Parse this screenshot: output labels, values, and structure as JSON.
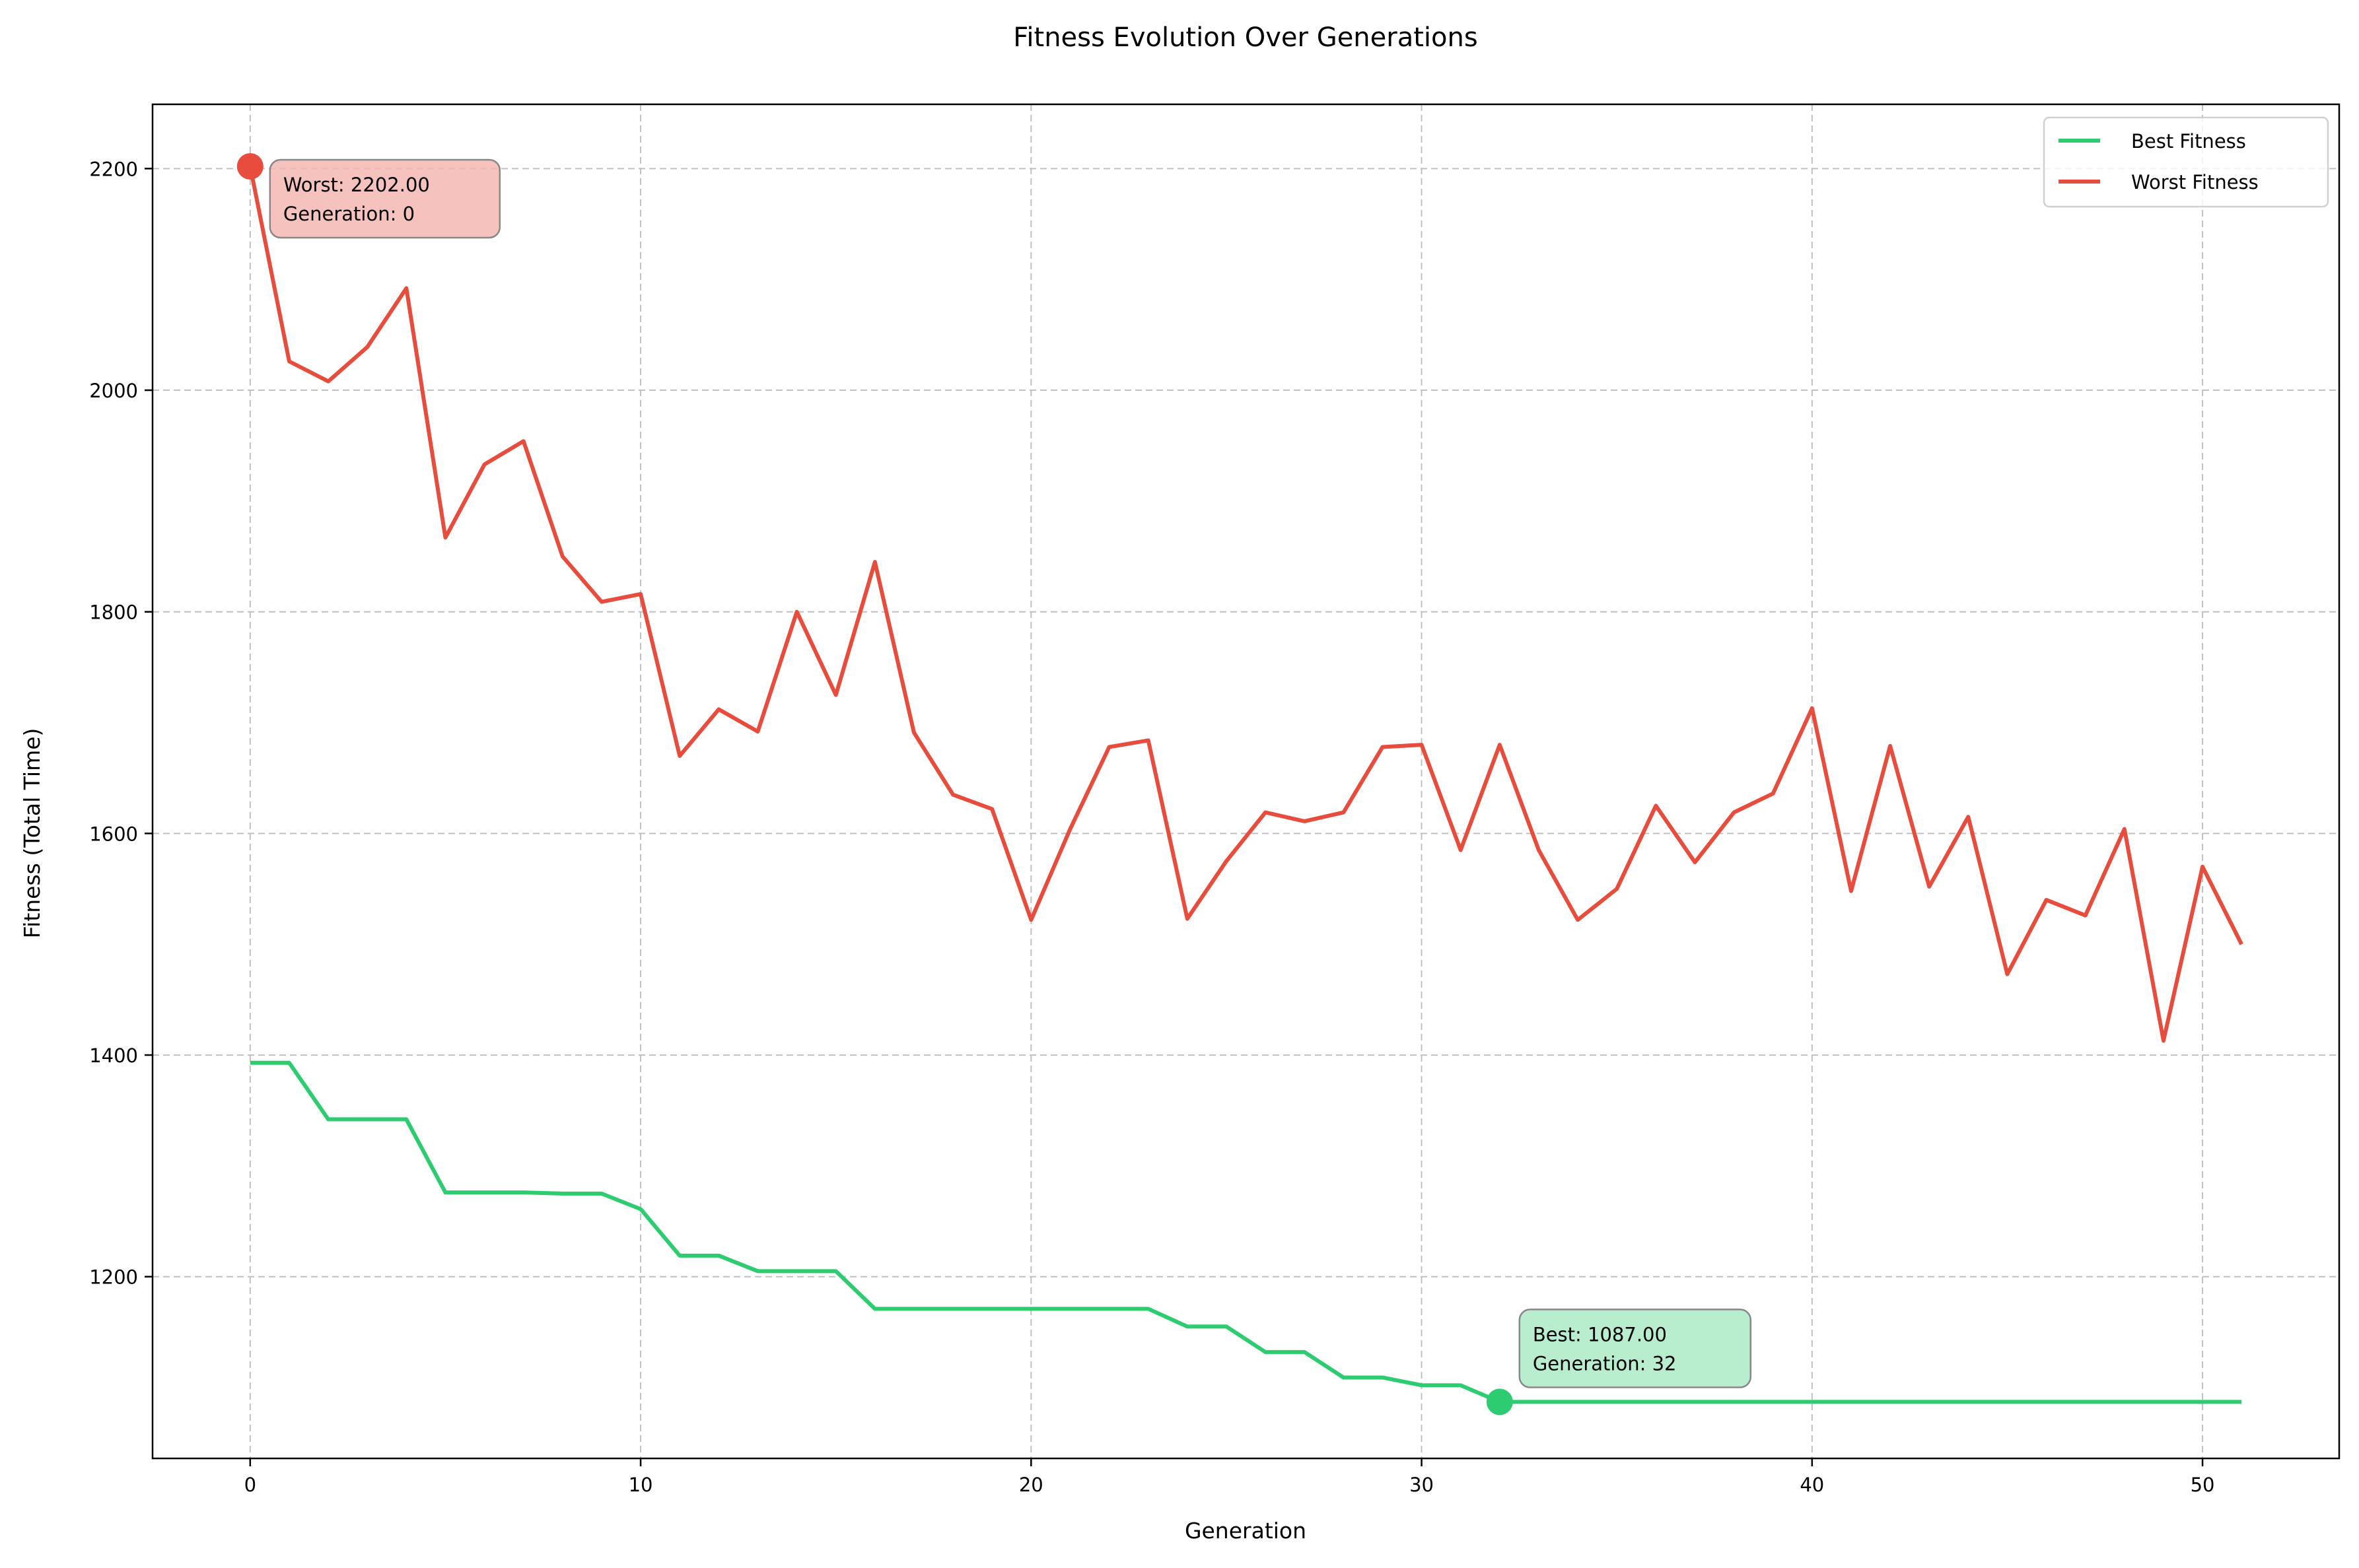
{
  "chart_data": {
    "type": "line",
    "title": "Fitness Evolution Over Generations",
    "xlabel": "Generation",
    "ylabel": "Fitness (Total Time)",
    "xlim": [
      -2.5,
      53.5
    ],
    "ylim": [
      1036,
      2258
    ],
    "xticks": [
      0,
      10,
      20,
      30,
      40,
      50
    ],
    "yticks": [
      1200,
      1400,
      1600,
      1800,
      2000,
      2200
    ],
    "grid": true,
    "legend_position": "top-right",
    "x": [
      0,
      1,
      2,
      3,
      4,
      5,
      6,
      7,
      8,
      9,
      10,
      11,
      12,
      13,
      14,
      15,
      16,
      17,
      18,
      19,
      20,
      21,
      22,
      23,
      24,
      25,
      26,
      27,
      28,
      29,
      30,
      31,
      32,
      33,
      34,
      35,
      36,
      37,
      38,
      39,
      40,
      41,
      42,
      43,
      44,
      45,
      46,
      47,
      48,
      49,
      50,
      51
    ],
    "series": [
      {
        "name": "Best Fitness",
        "color": "#2ecc71",
        "values": [
          1393,
          1393,
          1342,
          1342,
          1342,
          1276,
          1276,
          1276,
          1275,
          1275,
          1261,
          1219,
          1219,
          1205,
          1205,
          1205,
          1171,
          1171,
          1171,
          1171,
          1171,
          1171,
          1171,
          1171,
          1155,
          1155,
          1132,
          1132,
          1109,
          1109,
          1102,
          1102,
          1087,
          1087,
          1087,
          1087,
          1087,
          1087,
          1087,
          1087,
          1087,
          1087,
          1087,
          1087,
          1087,
          1087,
          1087,
          1087,
          1087,
          1087,
          1087,
          1087
        ]
      },
      {
        "name": "Worst Fitness",
        "color": "#e74c3c",
        "values": [
          2202,
          2026,
          2008,
          2039,
          2092,
          1867,
          1933,
          1954,
          1850,
          1809,
          1816,
          1670,
          1712,
          1692,
          1800,
          1725,
          1845,
          1691,
          1635,
          1622,
          1522,
          1604,
          1678,
          1684,
          1523,
          1575,
          1619,
          1611,
          1619,
          1678,
          1680,
          1585,
          1680,
          1585,
          1522,
          1550,
          1625,
          1574,
          1619,
          1636,
          1713,
          1548,
          1679,
          1552,
          1615,
          1473,
          1540,
          1526,
          1604,
          1413,
          1570,
          1500
        ]
      }
    ],
    "annotations": [
      {
        "series": "Worst Fitness",
        "x": 0,
        "y": 2202,
        "line1": "Worst: 2202.00",
        "line2": "Generation: 0",
        "box_color": "#f5b7b1",
        "marker_color": "#e74c3c"
      },
      {
        "series": "Best Fitness",
        "x": 32,
        "y": 1087,
        "line1": "Best: 1087.00",
        "line2": "Generation: 32",
        "box_color": "#abebc6",
        "marker_color": "#2ecc71"
      }
    ]
  }
}
